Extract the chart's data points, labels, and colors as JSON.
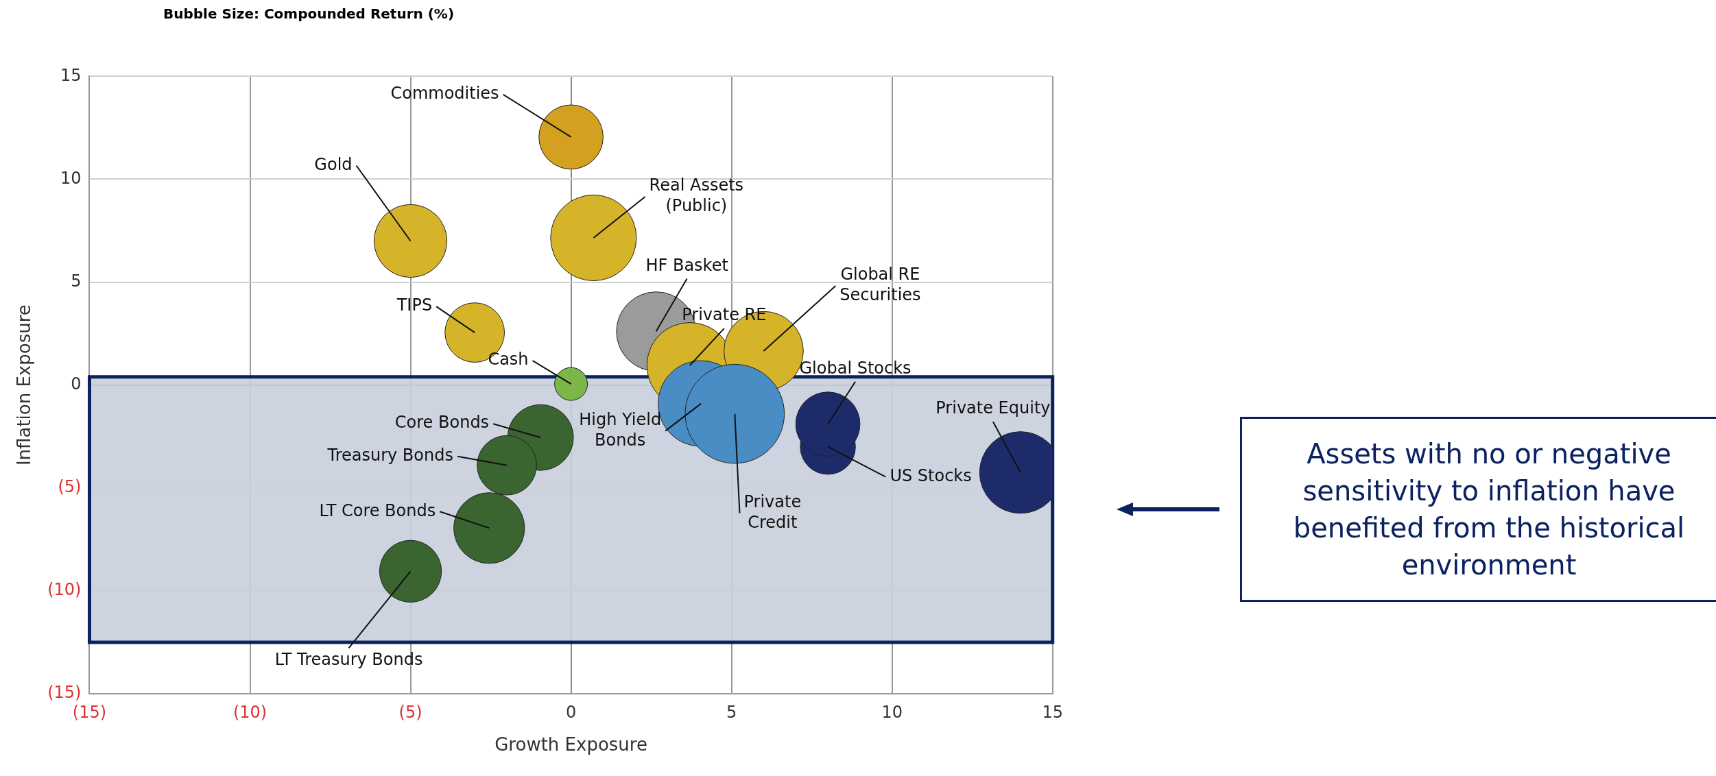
{
  "chart_data": {
    "type": "bubble",
    "title": "Bubble Size: Compounded Return (%)",
    "xlabel": "Growth Exposure",
    "ylabel": "Inflation Exposure",
    "xlim": [
      -15,
      15
    ],
    "ylim": [
      -15,
      15
    ],
    "xticks": [
      {
        "value": -15,
        "label": "(15)"
      },
      {
        "value": -10,
        "label": "(10)"
      },
      {
        "value": -5,
        "label": "(5)"
      },
      0,
      5,
      10,
      15
    ],
    "yticks": [
      {
        "value": -15,
        "label": "(15)"
      },
      {
        "value": -10,
        "label": "(10)"
      },
      {
        "value": -5,
        "label": "(5)"
      },
      0,
      5,
      10,
      15
    ],
    "grid": true,
    "legend": false,
    "bands": [
      {
        "axis": "y",
        "from": -12.5,
        "to": 0.4,
        "color": "#c9cfdc"
      }
    ],
    "annotations": [
      "Assets with no or negative sensitivity to inflation have benefited from the historical environment"
    ],
    "series": [
      {
        "name": "Commodities",
        "color": "#d4a020",
        "x": [
          0
        ],
        "values": [
          12.05
        ],
        "sizes": [
          0.42
        ]
      },
      {
        "name": "Gold",
        "color": "#d6b429",
        "x": [
          -5
        ],
        "values": [
          7
        ],
        "sizes": [
          0.54
        ]
      },
      {
        "name": "Real Assets (Public)",
        "color": "#d6b429",
        "x": [
          0.7
        ],
        "values": [
          7.15
        ],
        "sizes": [
          0.75
        ]
      },
      {
        "name": "TIPS",
        "color": "#d6b429",
        "x": [
          -3
        ],
        "values": [
          2.55
        ],
        "sizes": [
          0.36
        ]
      },
      {
        "name": "HF Basket",
        "color": "#9b9b9b",
        "x": [
          2.65
        ],
        "values": [
          2.6
        ],
        "sizes": [
          0.64
        ]
      },
      {
        "name": "Private RE",
        "color": "#d6b429",
        "x": [
          3.7
        ],
        "values": [
          0.95
        ],
        "sizes": [
          0.75
        ]
      },
      {
        "name": "Global RE Securities",
        "color": "#d6b429",
        "x": [
          6
        ],
        "values": [
          1.65
        ],
        "sizes": [
          0.64
        ]
      },
      {
        "name": "Cash",
        "color": "#7ab648",
        "x": [
          0
        ],
        "values": [
          0.05
        ],
        "sizes": [
          0.11
        ]
      },
      {
        "name": "Core Bonds",
        "color": "#3a6530",
        "x": [
          -0.95
        ],
        "values": [
          -2.55
        ],
        "sizes": [
          0.44
        ]
      },
      {
        "name": "Treasury Bonds",
        "color": "#3a6530",
        "x": [
          -2
        ],
        "values": [
          -3.9
        ],
        "sizes": [
          0.36
        ]
      },
      {
        "name": "LT Core Bonds",
        "color": "#3a6530",
        "x": [
          -2.55
        ],
        "values": [
          -6.95
        ],
        "sizes": [
          0.51
        ]
      },
      {
        "name": "LT Treasury Bonds",
        "color": "#3a6530",
        "x": [
          -5
        ],
        "values": [
          -9.05
        ],
        "sizes": [
          0.39
        ]
      },
      {
        "name": "High Yield Bonds",
        "color": "#4a8cc4",
        "x": [
          4.05
        ],
        "values": [
          -0.9
        ],
        "sizes": [
          0.75
        ]
      },
      {
        "name": "Private Credit",
        "color": "#4a8cc4",
        "x": [
          5.1
        ],
        "values": [
          -1.4
        ],
        "sizes": [
          1
        ]
      },
      {
        "name": "US Stocks",
        "color": "#1e2b6a",
        "x": [
          8
        ],
        "values": [
          -3
        ],
        "sizes": [
          0.31
        ]
      },
      {
        "name": "Global Stocks",
        "color": "#1e2b6a",
        "x": [
          8
        ],
        "values": [
          -1.9
        ],
        "sizes": [
          0.42
        ]
      },
      {
        "name": "Private Equity",
        "color": "#1e2b6a",
        "x": [
          14
        ],
        "values": [
          -4.25
        ],
        "sizes": [
          0.68
        ]
      }
    ]
  }
}
